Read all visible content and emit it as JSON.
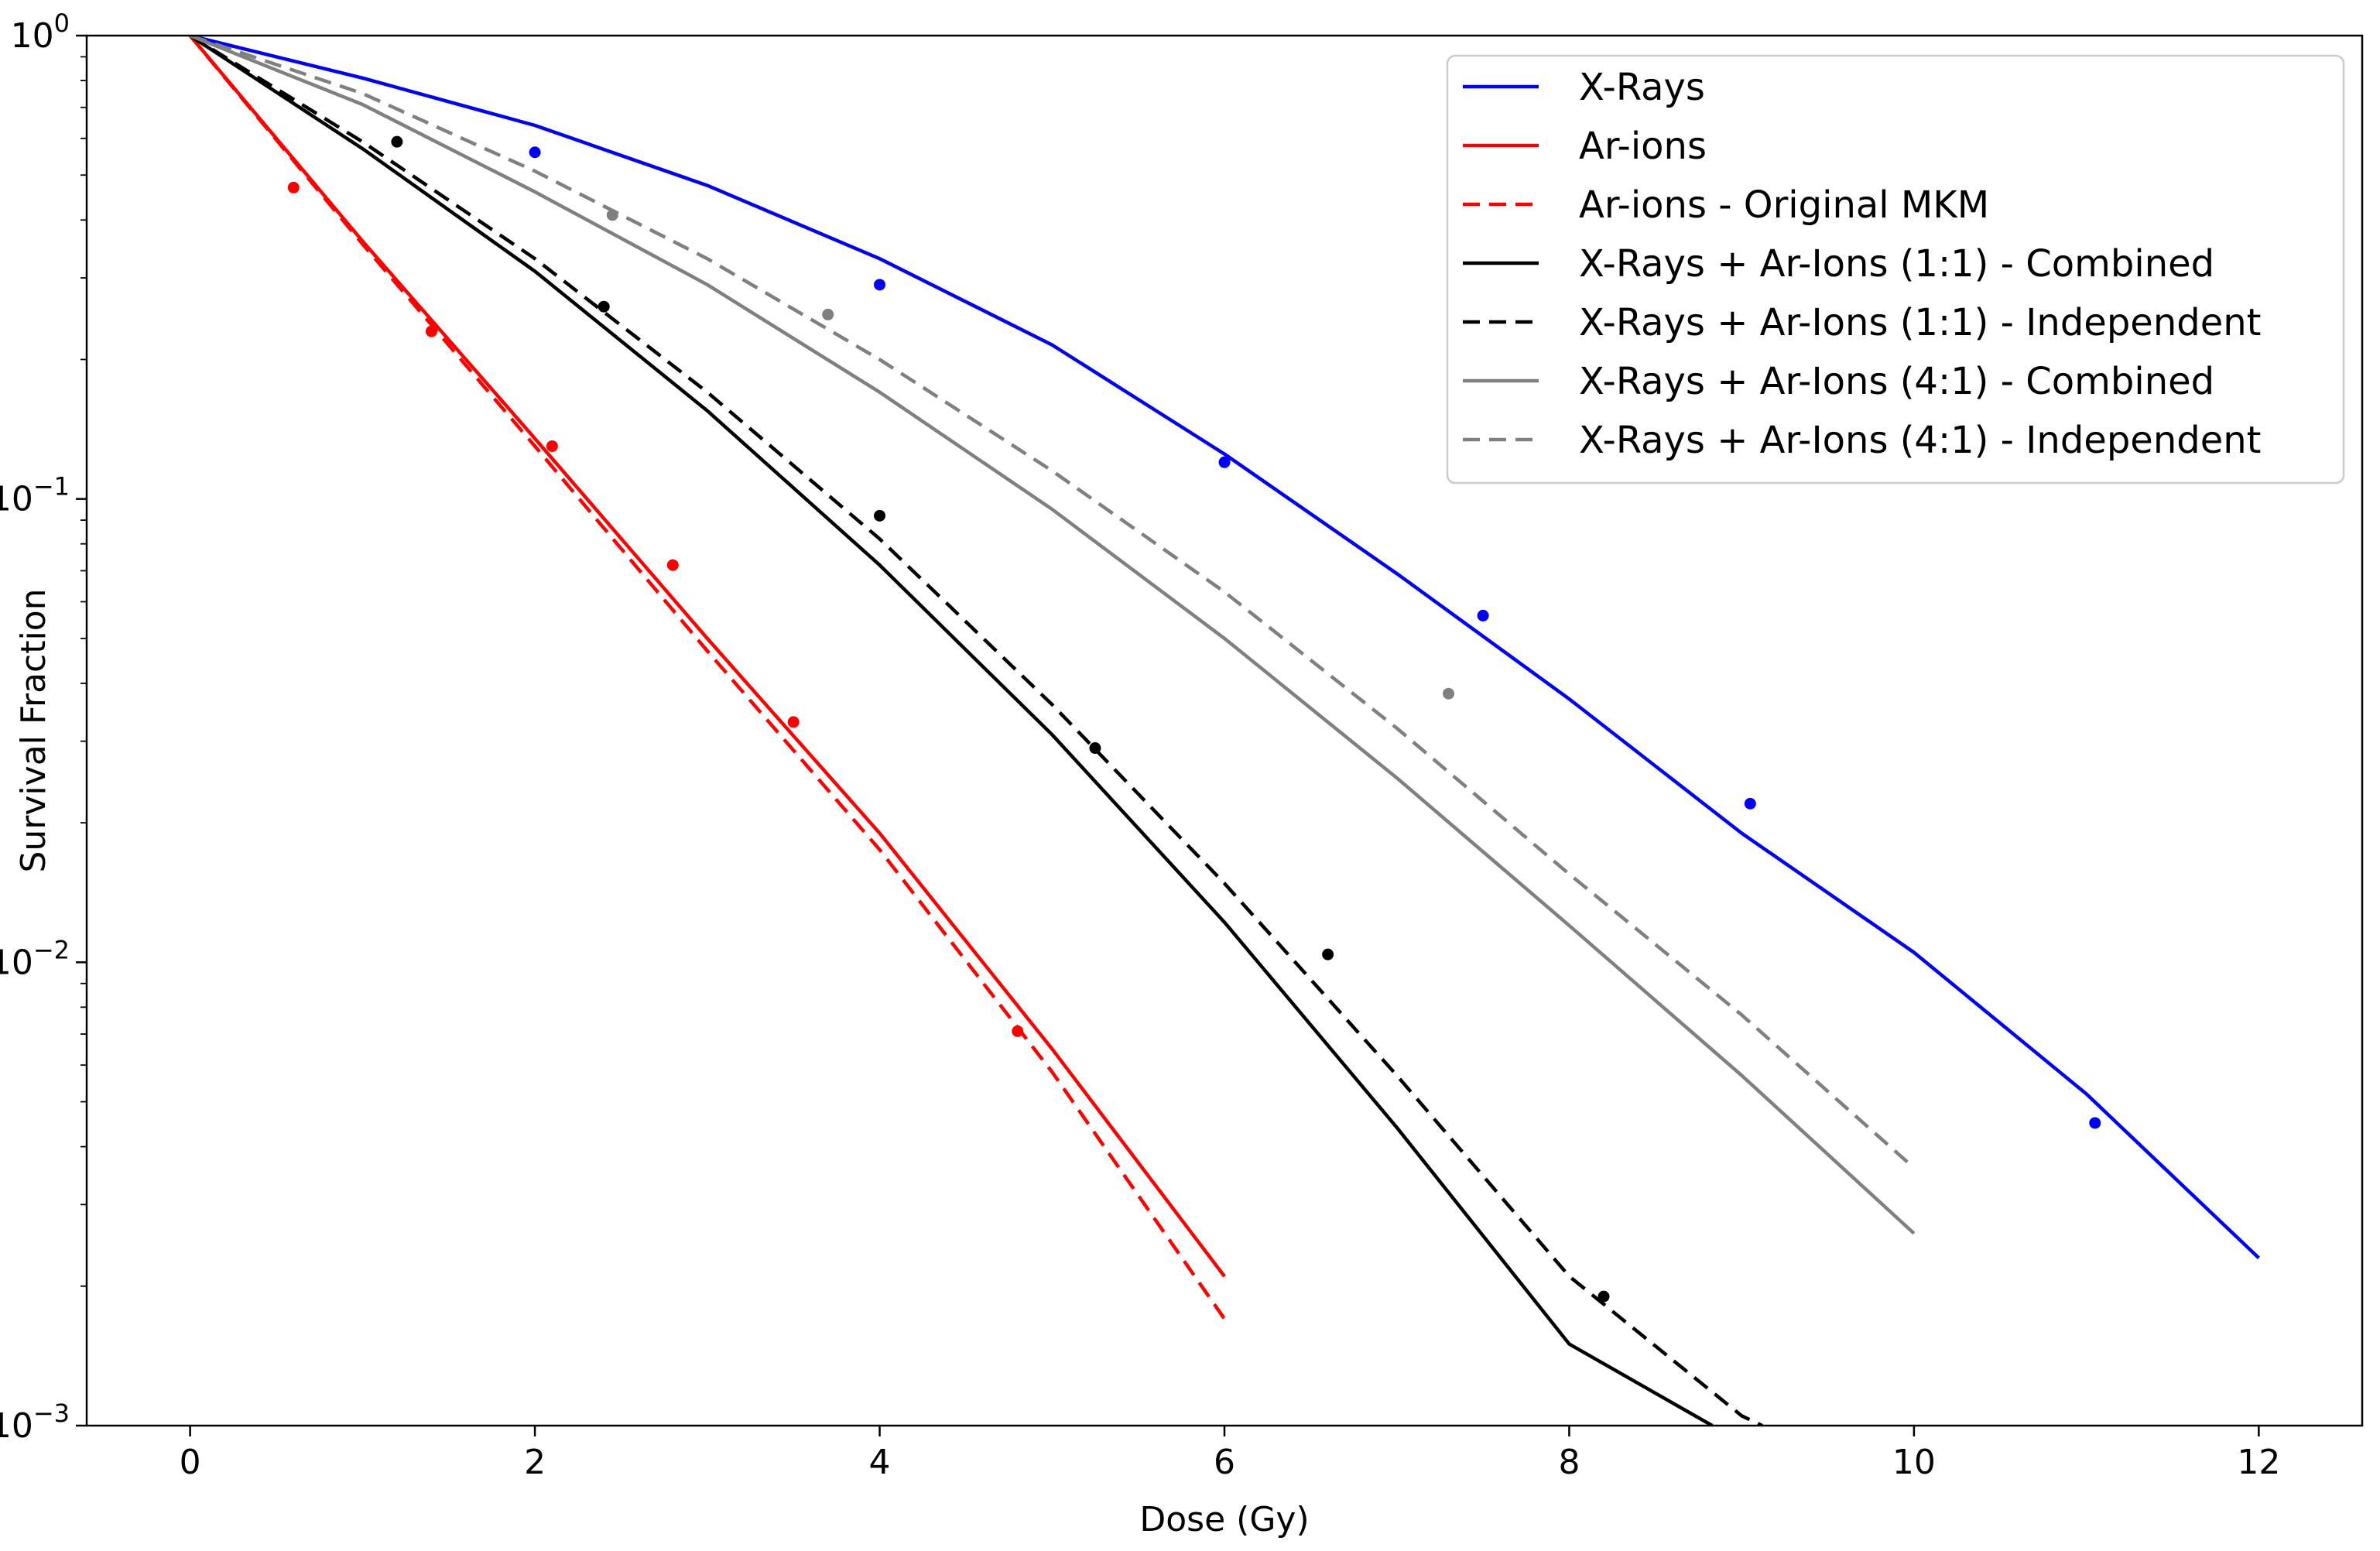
{
  "chart_data": {
    "type": "line",
    "title": "",
    "xlabel": "Dose (Gy)",
    "ylabel": "Survival Fraction",
    "xlim": [
      -0.6,
      12.6
    ],
    "ylim": [
      0.001,
      1
    ],
    "yscale": "log",
    "grid": false,
    "legend_position": "top-right",
    "x_ticks": [
      0,
      2,
      4,
      6,
      8,
      10,
      12
    ],
    "x_tick_labels": [
      "0",
      "2",
      "4",
      "6",
      "8",
      "10",
      "12"
    ],
    "y_ticks": [
      1,
      0.1,
      0.01,
      0.001
    ],
    "y_tick_labels": [
      {
        "base": "10",
        "exp": "0"
      },
      {
        "base": "10",
        "exp": "−1"
      },
      {
        "base": "10",
        "exp": "−2"
      },
      {
        "base": "10",
        "exp": "−3"
      }
    ],
    "series": [
      {
        "name": "X-Rays",
        "color": "#0000ff",
        "dash": "solid",
        "x": [
          0,
          1,
          2,
          3,
          4,
          5,
          6,
          7,
          8,
          9,
          10,
          11,
          12
        ],
        "y": [
          1.0,
          0.81,
          0.64,
          0.475,
          0.33,
          0.215,
          0.125,
          0.069,
          0.037,
          0.019,
          0.0105,
          0.0052,
          0.0023
        ]
      },
      {
        "name": "Ar-ions",
        "color": "#ff0000",
        "dash": "solid",
        "x": [
          0,
          1,
          2,
          3,
          4,
          5,
          6
        ],
        "y": [
          1.0,
          0.36,
          0.135,
          0.05,
          0.019,
          0.0065,
          0.0021
        ]
      },
      {
        "name": "Ar-ions - Original MKM",
        "color": "#ff0000",
        "dash": "dashed",
        "x": [
          0,
          1,
          2,
          3,
          4,
          5,
          6
        ],
        "y": [
          1.0,
          0.355,
          0.13,
          0.047,
          0.0175,
          0.0058,
          0.0017
        ]
      },
      {
        "name": "X-Rays + Ar-Ions (1:1) - Combined",
        "color": "#000000",
        "dash": "solid",
        "x": [
          0,
          1,
          2,
          3,
          4,
          5,
          6,
          7,
          8,
          8.83
        ],
        "y": [
          1.0,
          0.57,
          0.31,
          0.155,
          0.072,
          0.031,
          0.0122,
          0.0044,
          0.0015,
          0.001
        ]
      },
      {
        "name": "X-Rays + Ar-Ions (1:1) - Independent",
        "color": "#000000",
        "dash": "dashed",
        "x": [
          0,
          1,
          2,
          3,
          4,
          5,
          6,
          7,
          8,
          9,
          9.12
        ],
        "y": [
          1.0,
          0.59,
          0.33,
          0.17,
          0.082,
          0.036,
          0.0148,
          0.0057,
          0.0021,
          0.00105,
          0.001
        ]
      },
      {
        "name": "X-Rays + Ar-Ions (4:1) - Combined",
        "color": "#808080",
        "dash": "solid",
        "x": [
          0,
          1,
          2,
          3,
          4,
          5,
          6,
          7,
          8,
          9,
          10
        ],
        "y": [
          1.0,
          0.71,
          0.46,
          0.29,
          0.17,
          0.095,
          0.05,
          0.025,
          0.012,
          0.0057,
          0.0026
        ]
      },
      {
        "name": "X-Rays + Ar-Ions (4:1) - Independent",
        "color": "#808080",
        "dash": "dashed",
        "x": [
          0,
          1,
          2,
          3,
          4,
          5,
          6,
          7,
          8,
          9,
          10
        ],
        "y": [
          1.0,
          0.75,
          0.51,
          0.33,
          0.2,
          0.115,
          0.063,
          0.032,
          0.0155,
          0.0077,
          0.0036
        ]
      }
    ],
    "scatter": [
      {
        "color": "#0000ff",
        "x": [
          2.0,
          4.0,
          6.0,
          7.5,
          9.05,
          11.05
        ],
        "y": [
          0.56,
          0.29,
          0.12,
          0.056,
          0.022,
          0.0045
        ]
      },
      {
        "color": "#ff0000",
        "x": [
          0.6,
          1.4,
          2.1,
          2.8,
          3.5,
          4.8
        ],
        "y": [
          0.47,
          0.23,
          0.13,
          0.072,
          0.033,
          0.0071
        ]
      },
      {
        "color": "#000000",
        "x": [
          1.2,
          2.4,
          4.0,
          5.25,
          6.6,
          8.2
        ],
        "y": [
          0.59,
          0.26,
          0.092,
          0.029,
          0.0104,
          0.0019
        ]
      },
      {
        "color": "#808080",
        "x": [
          2.45,
          3.7,
          7.3
        ],
        "y": [
          0.41,
          0.25,
          0.038
        ]
      }
    ]
  }
}
